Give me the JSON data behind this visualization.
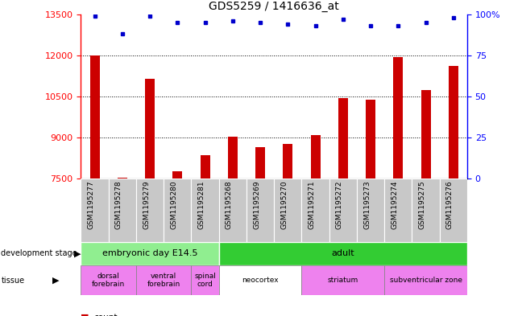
{
  "title": "GDS5259 / 1416636_at",
  "samples": [
    "GSM1195277",
    "GSM1195278",
    "GSM1195279",
    "GSM1195280",
    "GSM1195281",
    "GSM1195268",
    "GSM1195269",
    "GSM1195270",
    "GSM1195271",
    "GSM1195272",
    "GSM1195273",
    "GSM1195274",
    "GSM1195275",
    "GSM1195276"
  ],
  "counts": [
    11980,
    7520,
    11150,
    7780,
    8350,
    9020,
    8650,
    8760,
    9080,
    10450,
    10380,
    11940,
    10720,
    11620
  ],
  "percentile_ranks": [
    99,
    88,
    99,
    95,
    95,
    96,
    95,
    94,
    93,
    97,
    93,
    93,
    95,
    98
  ],
  "ymin": 7500,
  "ymax": 13500,
  "yticks": [
    7500,
    9000,
    10500,
    12000,
    13500
  ],
  "right_yticks": [
    0,
    25,
    50,
    75,
    100
  ],
  "bar_color": "#cc0000",
  "dot_color": "#0000cc",
  "sample_bg_color": "#c8c8c8",
  "dev_stage_embryonic": {
    "label": "embryonic day E14.5",
    "start": 0,
    "end": 5,
    "color": "#90ee90"
  },
  "dev_stage_adult": {
    "label": "adult",
    "start": 5,
    "end": 14,
    "color": "#33cc33"
  },
  "tissue_groups": [
    {
      "label": "dorsal\nforebrain",
      "start": 0,
      "end": 2,
      "color": "#ee82ee"
    },
    {
      "label": "ventral\nforebrain",
      "start": 2,
      "end": 4,
      "color": "#ee82ee"
    },
    {
      "label": "spinal\ncord",
      "start": 4,
      "end": 5,
      "color": "#ee82ee"
    },
    {
      "label": "neocortex",
      "start": 5,
      "end": 8,
      "color": "#ffffff"
    },
    {
      "label": "striatum",
      "start": 8,
      "end": 11,
      "color": "#ee82ee"
    },
    {
      "label": "subventricular zone",
      "start": 11,
      "end": 14,
      "color": "#ee82ee"
    }
  ],
  "gridlines": [
    9000,
    10500,
    12000
  ]
}
